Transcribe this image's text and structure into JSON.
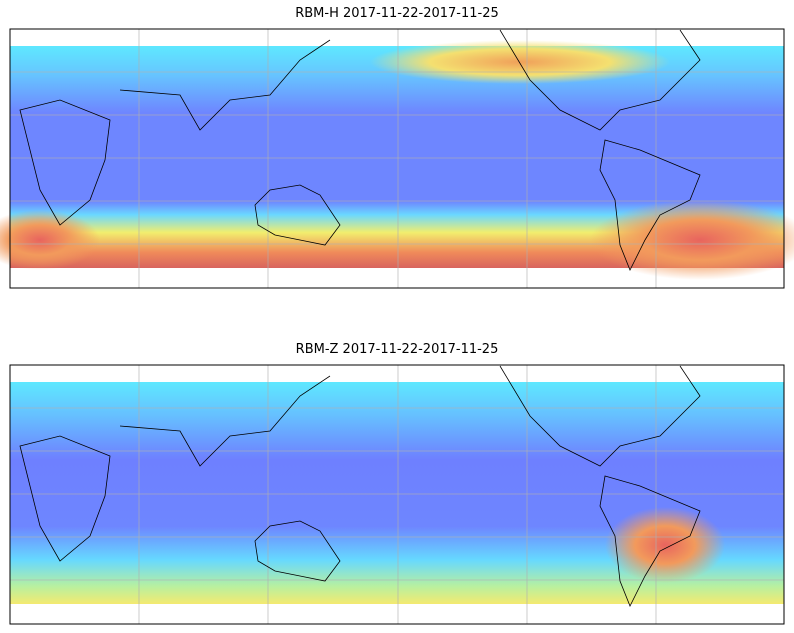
{
  "panels": [
    {
      "title": "RBM-H 2017-11-22-2017-11-25"
    },
    {
      "title": "RBM-Z 2017-11-22-2017-11-25"
    }
  ]
}
